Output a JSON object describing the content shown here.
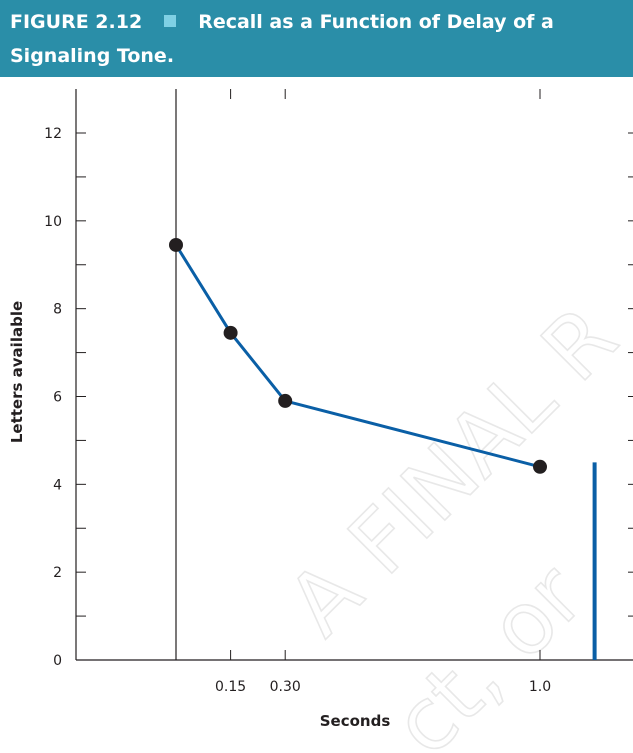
{
  "figure": {
    "number": "FIGURE 2.12",
    "title_line1": "Recall as a Function of Delay of a",
    "title_line2": "Signaling Tone.",
    "header_color": "#2a8ea8",
    "square_color": "#7fd0e4"
  },
  "watermark": {
    "text1": "A FINAL R",
    "text2": "ct, or"
  },
  "chart_data": {
    "type": "line",
    "title": "",
    "xlabel": "Seconds",
    "ylabel": "Letters available",
    "ylim": [
      0,
      12.5
    ],
    "yticks_major": [
      0,
      2,
      4,
      6,
      8,
      10,
      12
    ],
    "ytick_labels": [
      "0",
      "2",
      "4",
      "6",
      "8",
      "10",
      "12"
    ],
    "xlim": [
      -0.15,
      1.2
    ],
    "xticks": [
      0.15,
      0.3,
      1.0
    ],
    "xtick_labels": [
      "0.15",
      "0.30",
      "1.0"
    ],
    "points": [
      {
        "x": 0.0,
        "y": 9.45
      },
      {
        "x": 0.15,
        "y": 7.45
      },
      {
        "x": 0.3,
        "y": 5.9
      },
      {
        "x": 1.0,
        "y": 4.4
      }
    ],
    "vertical_bar": {
      "x": 1.15,
      "y0": 0,
      "y1": 4.5
    },
    "line_color": "#0a5fa6",
    "marker_color": "#231f20"
  }
}
